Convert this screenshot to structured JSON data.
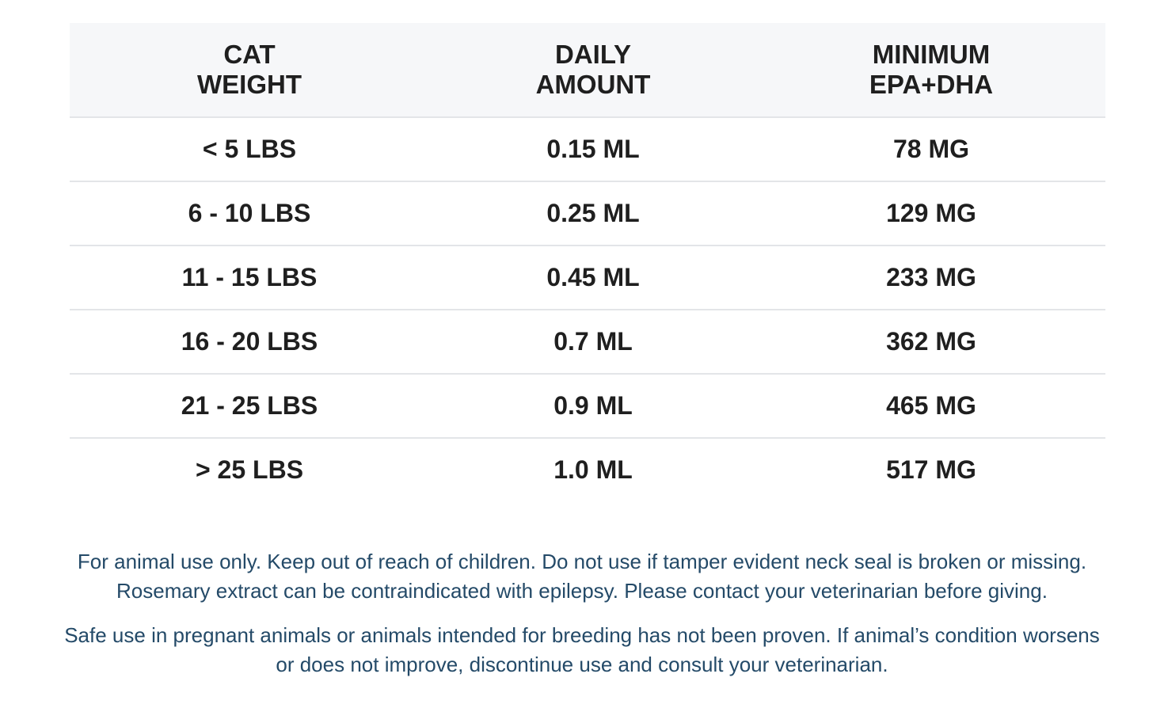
{
  "table": {
    "headers": [
      {
        "line1": "CAT",
        "line2": "WEIGHT"
      },
      {
        "line1": "DAILY",
        "line2": "AMOUNT"
      },
      {
        "line1": "MINIMUM",
        "line2": "EPA+DHA"
      }
    ],
    "rows": [
      [
        "< 5 LBS",
        "0.15 ML",
        "78 MG"
      ],
      [
        "6 - 10 LBS",
        "0.25 ML",
        "129 MG"
      ],
      [
        "11 - 15 LBS",
        "0.45 ML",
        "233 MG"
      ],
      [
        "16 - 20 LBS",
        "0.7 ML",
        "362 MG"
      ],
      [
        "21 - 25 LBS",
        "0.9 ML",
        "465 MG"
      ],
      [
        "> 25 LBS",
        "1.0 ML",
        "517 MG"
      ]
    ]
  },
  "notes": [
    {
      "line1": "For animal use only. Keep out of reach of children. Do not use if tamper evident neck seal is broken or missing.",
      "line2": "Rosemary extract can be contraindicated with epilepsy. Please contact your veterinarian before giving."
    },
    {
      "line1": "Safe use in pregnant animals or animals intended for breeding has not been proven. If animal’s condition worsens",
      "line2": "or does not improve, discontinue use and consult your veterinarian."
    }
  ]
}
